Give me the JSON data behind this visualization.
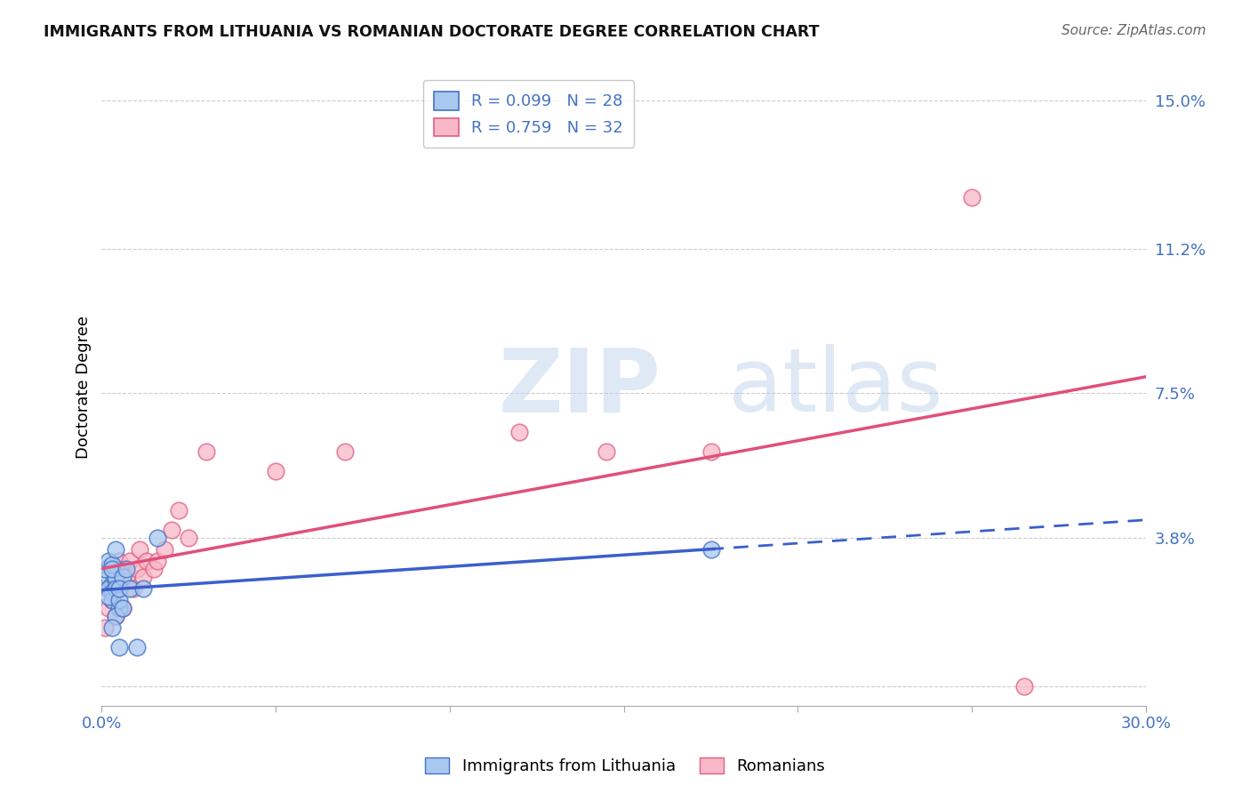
{
  "title": "IMMIGRANTS FROM LITHUANIA VS ROMANIAN DOCTORATE DEGREE CORRELATION CHART",
  "source": "Source: ZipAtlas.com",
  "ylabel": "Doctorate Degree",
  "tick_color": "#4472C4",
  "xlim": [
    0.0,
    0.3
  ],
  "ylim": [
    -0.005,
    0.158
  ],
  "xticks": [
    0.0,
    0.05,
    0.1,
    0.15,
    0.2,
    0.25,
    0.3
  ],
  "xtick_labels": [
    "0.0%",
    "",
    "",
    "",
    "",
    "",
    "30.0%"
  ],
  "ytick_positions": [
    0.0,
    0.038,
    0.075,
    0.112,
    0.15
  ],
  "ytick_labels": [
    "",
    "3.8%",
    "7.5%",
    "11.2%",
    "15.0%"
  ],
  "watermark_zip": "ZIP",
  "watermark_atlas": "atlas",
  "blue_fill": "#A8C8F0",
  "pink_fill": "#F8B8C8",
  "blue_edge": "#4472C4",
  "pink_edge": "#E06080",
  "blue_line": "#3A5FCD",
  "pink_line": "#E0507A",
  "label1": "Immigrants from Lithuania",
  "label2": "Romanians",
  "lith_x": [
    0.002,
    0.003,
    0.001,
    0.002,
    0.003,
    0.004,
    0.002,
    0.003,
    0.004,
    0.005,
    0.003,
    0.004,
    0.002,
    0.003,
    0.005,
    0.004,
    0.003,
    0.006,
    0.004,
    0.005,
    0.006,
    0.007,
    0.005,
    0.008,
    0.01,
    0.012,
    0.016,
    0.175
  ],
  "lith_y": [
    0.028,
    0.026,
    0.03,
    0.025,
    0.024,
    0.027,
    0.032,
    0.022,
    0.028,
    0.02,
    0.031,
    0.025,
    0.023,
    0.03,
    0.022,
    0.018,
    0.015,
    0.028,
    0.035,
    0.025,
    0.02,
    0.03,
    0.01,
    0.025,
    0.01,
    0.025,
    0.038,
    0.035
  ],
  "rom_x": [
    0.001,
    0.002,
    0.002,
    0.003,
    0.003,
    0.004,
    0.004,
    0.005,
    0.005,
    0.006,
    0.006,
    0.007,
    0.008,
    0.009,
    0.01,
    0.011,
    0.012,
    0.013,
    0.015,
    0.016,
    0.018,
    0.02,
    0.022,
    0.025,
    0.03,
    0.05,
    0.07,
    0.12,
    0.145,
    0.175,
    0.25,
    0.265
  ],
  "rom_y": [
    0.015,
    0.02,
    0.025,
    0.022,
    0.03,
    0.018,
    0.028,
    0.025,
    0.032,
    0.02,
    0.03,
    0.028,
    0.032,
    0.025,
    0.03,
    0.035,
    0.028,
    0.032,
    0.03,
    0.032,
    0.035,
    0.04,
    0.045,
    0.038,
    0.06,
    0.055,
    0.06,
    0.065,
    0.06,
    0.06,
    0.125,
    0.0
  ]
}
